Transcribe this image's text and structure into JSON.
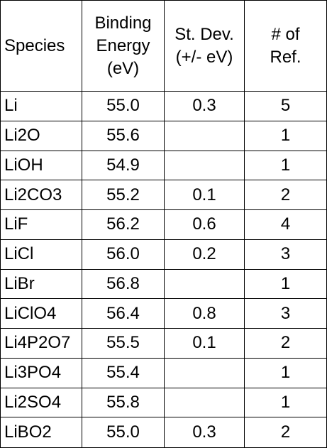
{
  "table": {
    "header": [
      [
        "Species"
      ],
      [
        "Binding",
        "Energy",
        "(eV)"
      ],
      [
        "St. Dev.",
        "(+/- eV)"
      ],
      [
        "# of",
        "Ref."
      ]
    ],
    "rows": [
      [
        "Li",
        "55.0",
        "0.3",
        "5"
      ],
      [
        "Li2O",
        "55.6",
        null,
        "1"
      ],
      [
        "LiOH",
        "54.9",
        null,
        "1"
      ],
      [
        "Li2CO3",
        "55.2",
        "0.1",
        "2"
      ],
      [
        "LiF",
        "56.2",
        "0.6",
        "4"
      ],
      [
        "LiCl",
        "56.0",
        "0.2",
        "3"
      ],
      [
        "LiBr",
        "56.8",
        null,
        "1"
      ],
      [
        "LiClO4",
        "56.4",
        "0.8",
        "3"
      ],
      [
        "Li4P2O7",
        "55.5",
        "0.1",
        "2"
      ],
      [
        "Li3PO4",
        "55.4",
        null,
        "1"
      ],
      [
        "Li2SO4",
        "55.8",
        null,
        "1"
      ],
      [
        "LiBO2",
        "55.0",
        "0.3",
        "2"
      ]
    ]
  }
}
